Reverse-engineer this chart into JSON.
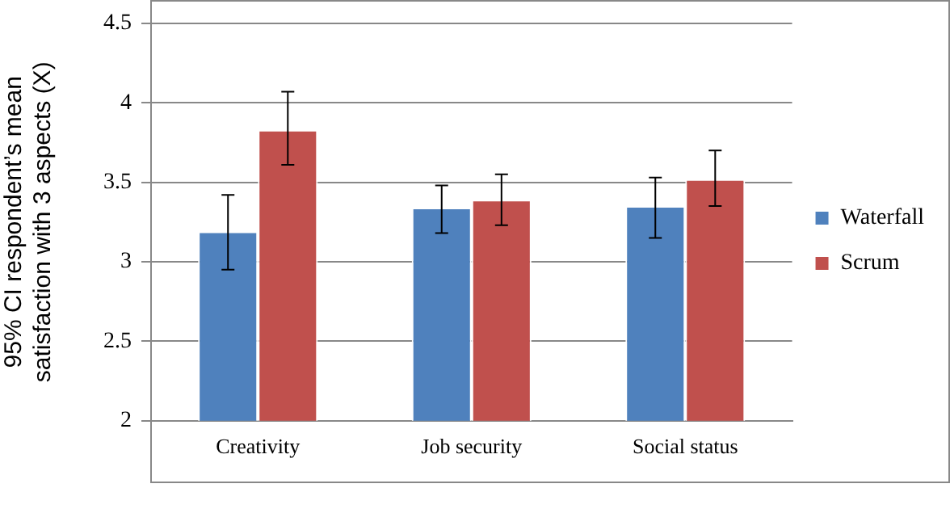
{
  "chart_data": {
    "type": "bar",
    "ylabel": "95% CI respondent’s mean satisfaction with 3 aspects (X)",
    "categories": [
      "Creativity",
      "Job security",
      "Social status"
    ],
    "series": [
      {
        "name": "Waterfall",
        "color": "#4f81bd",
        "values": [
          3.19,
          3.34,
          3.35
        ],
        "errors": [
          [
            2.95,
            3.42
          ],
          [
            3.18,
            3.48
          ],
          [
            3.15,
            3.53
          ]
        ]
      },
      {
        "name": "Scrum",
        "color": "#c0504d",
        "values": [
          3.83,
          3.39,
          3.52
        ],
        "errors": [
          [
            3.61,
            4.07
          ],
          [
            3.23,
            3.55
          ],
          [
            3.35,
            3.7
          ]
        ]
      }
    ],
    "ylim": [
      2,
      4.5
    ],
    "yticks": [
      2,
      2.5,
      3,
      3.5,
      4,
      4.5
    ],
    "grid": "y",
    "legend": "right"
  }
}
